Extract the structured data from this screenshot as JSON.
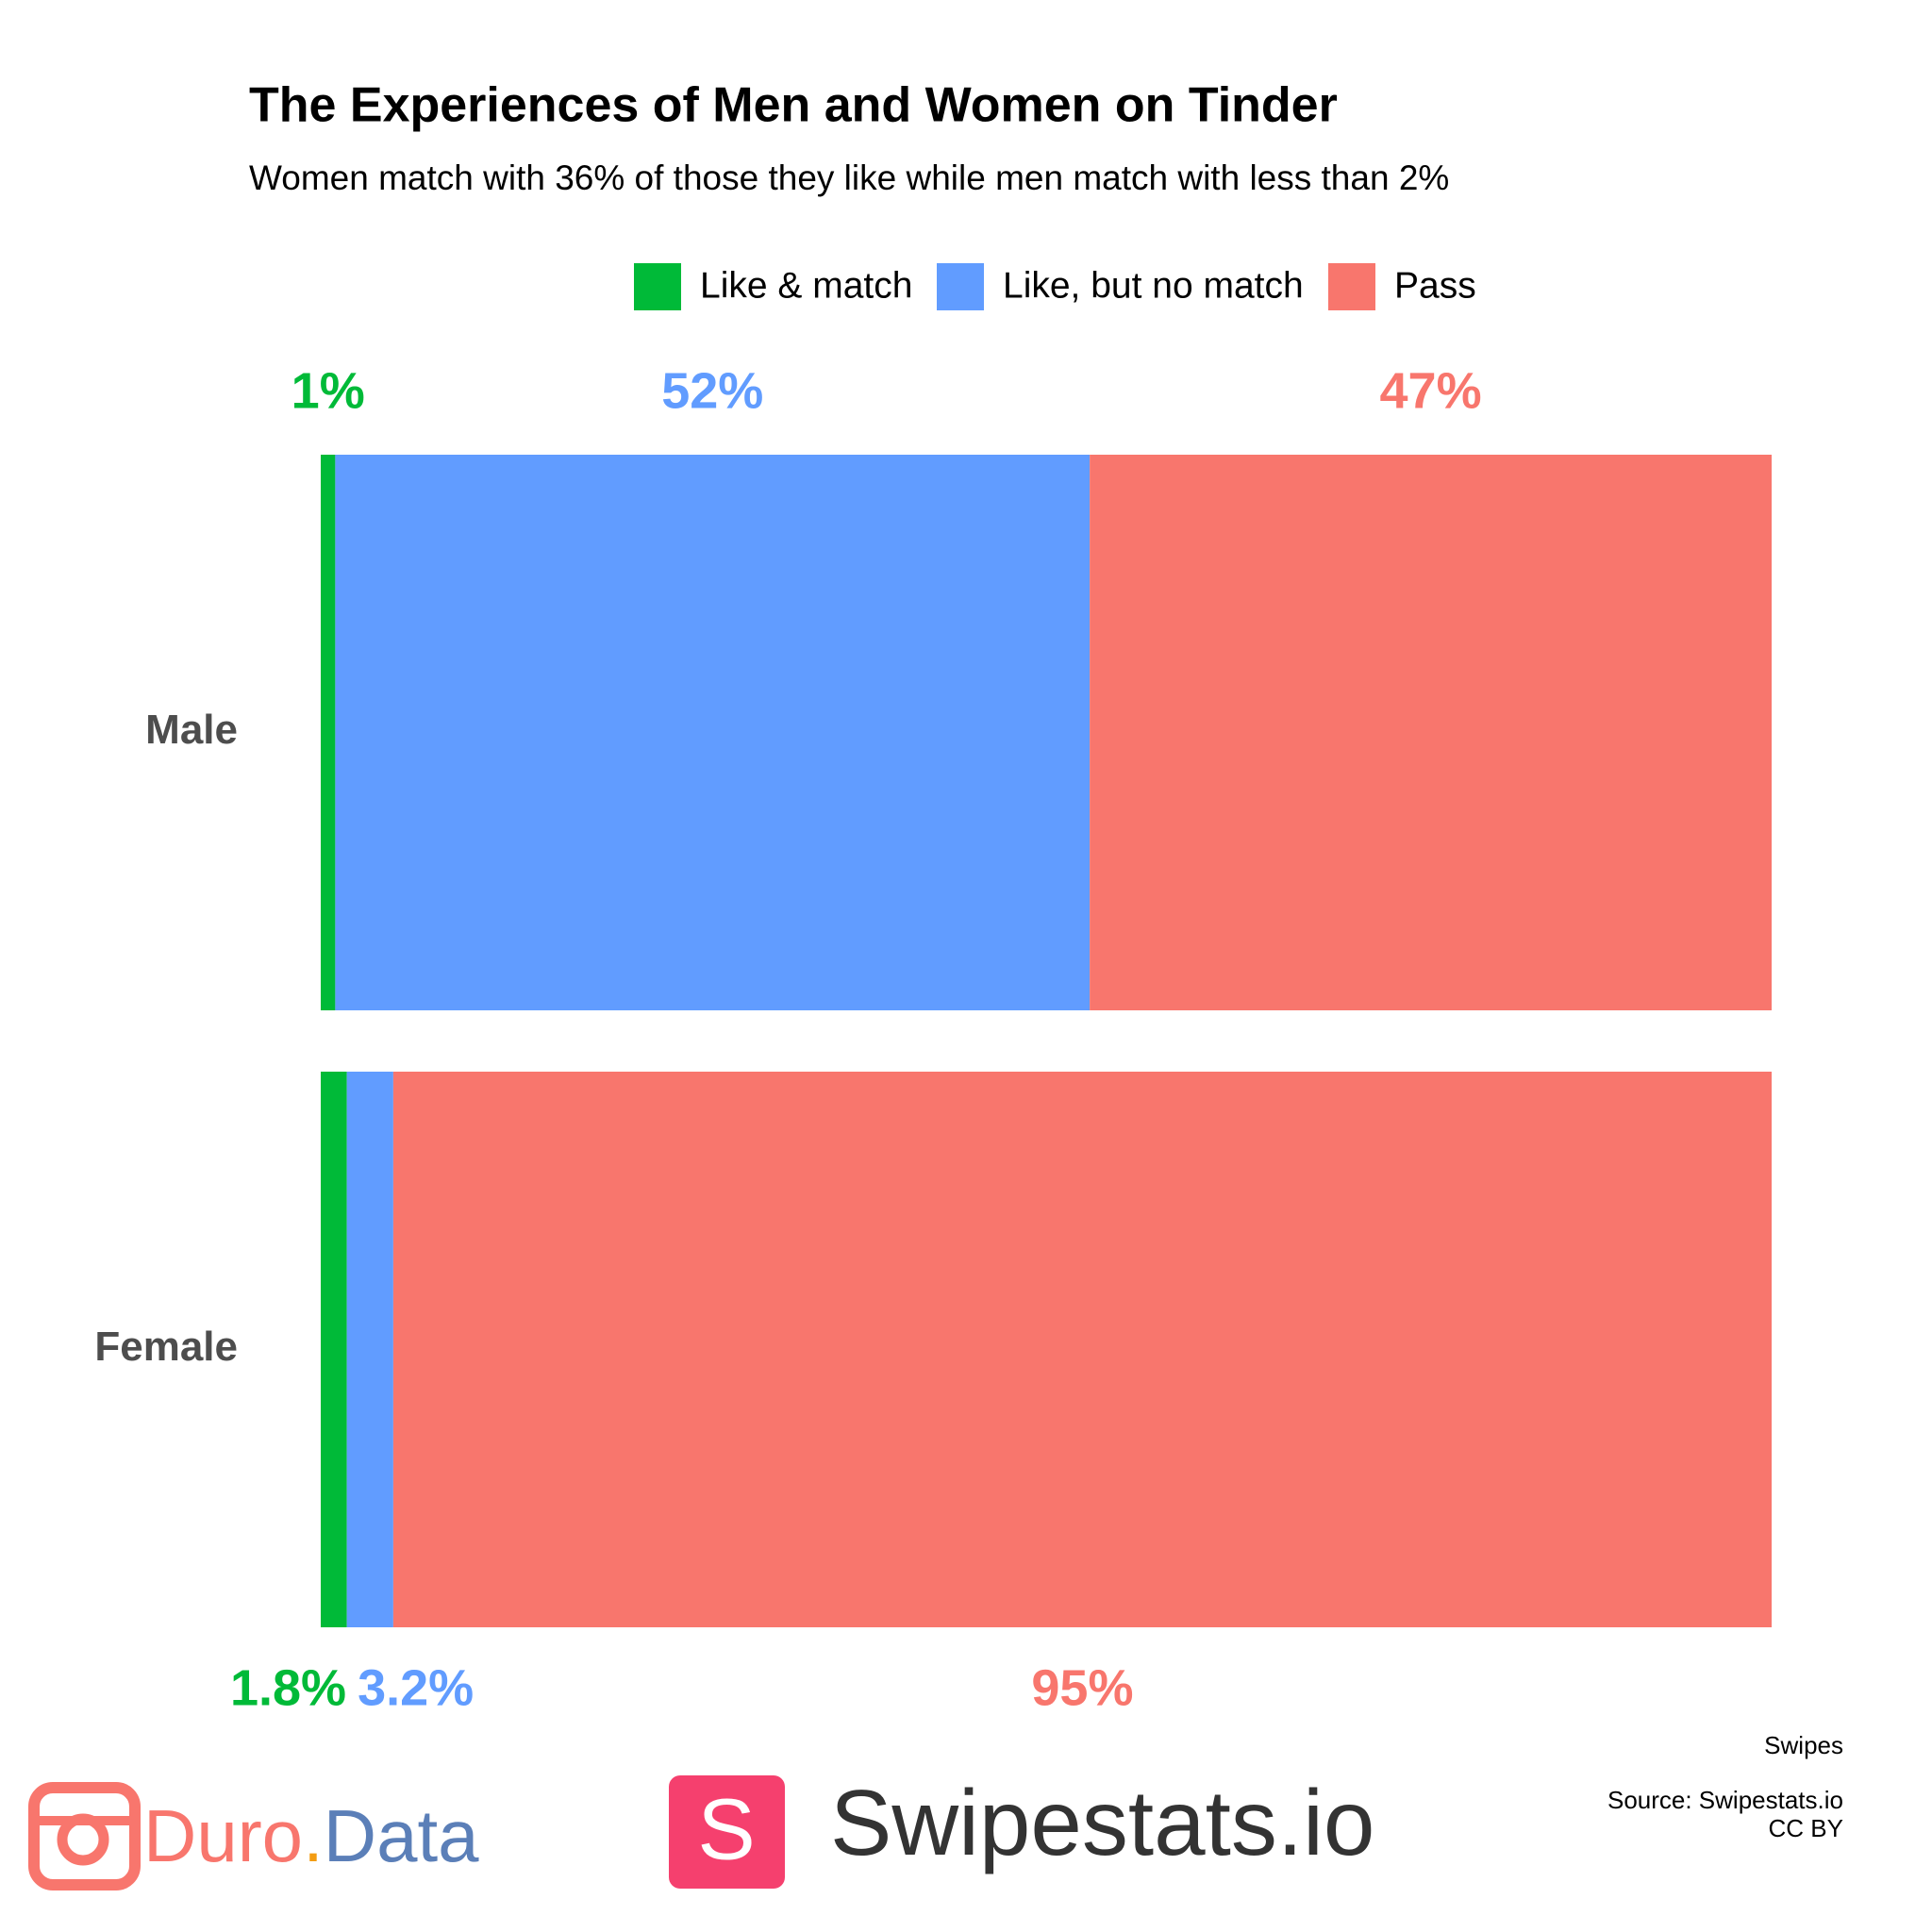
{
  "chart_data": {
    "type": "bar",
    "orientation": "horizontal",
    "stacked": true,
    "title": "The Experiences of Men and Women on Tinder",
    "subtitle": "Women match with 36% of those they like while men match with less than 2%",
    "categories": [
      "Male",
      "Female"
    ],
    "series": [
      {
        "name": "Like & match",
        "color": "#00ba38",
        "values": [
          1,
          1.8
        ],
        "value_labels": [
          "1%",
          "1.8%"
        ]
      },
      {
        "name": "Like, but no match",
        "color": "#619cff",
        "values": [
          52,
          3.2
        ],
        "value_labels": [
          "52%",
          "3.2%"
        ]
      },
      {
        "name": "Pass",
        "color": "#f8766d",
        "values": [
          47,
          95
        ],
        "value_labels": [
          "47%",
          "95%"
        ]
      }
    ],
    "xlim": [
      0,
      100
    ],
    "grid": false,
    "legend": "top",
    "caption": "Swipes",
    "source": "Source: Swipestats.io",
    "license": "CC BY",
    "logos": {
      "duro": [
        "Duro",
        ".",
        "Data"
      ],
      "swipestats_icon": "S",
      "swipestats": "Swipestats.io"
    }
  }
}
